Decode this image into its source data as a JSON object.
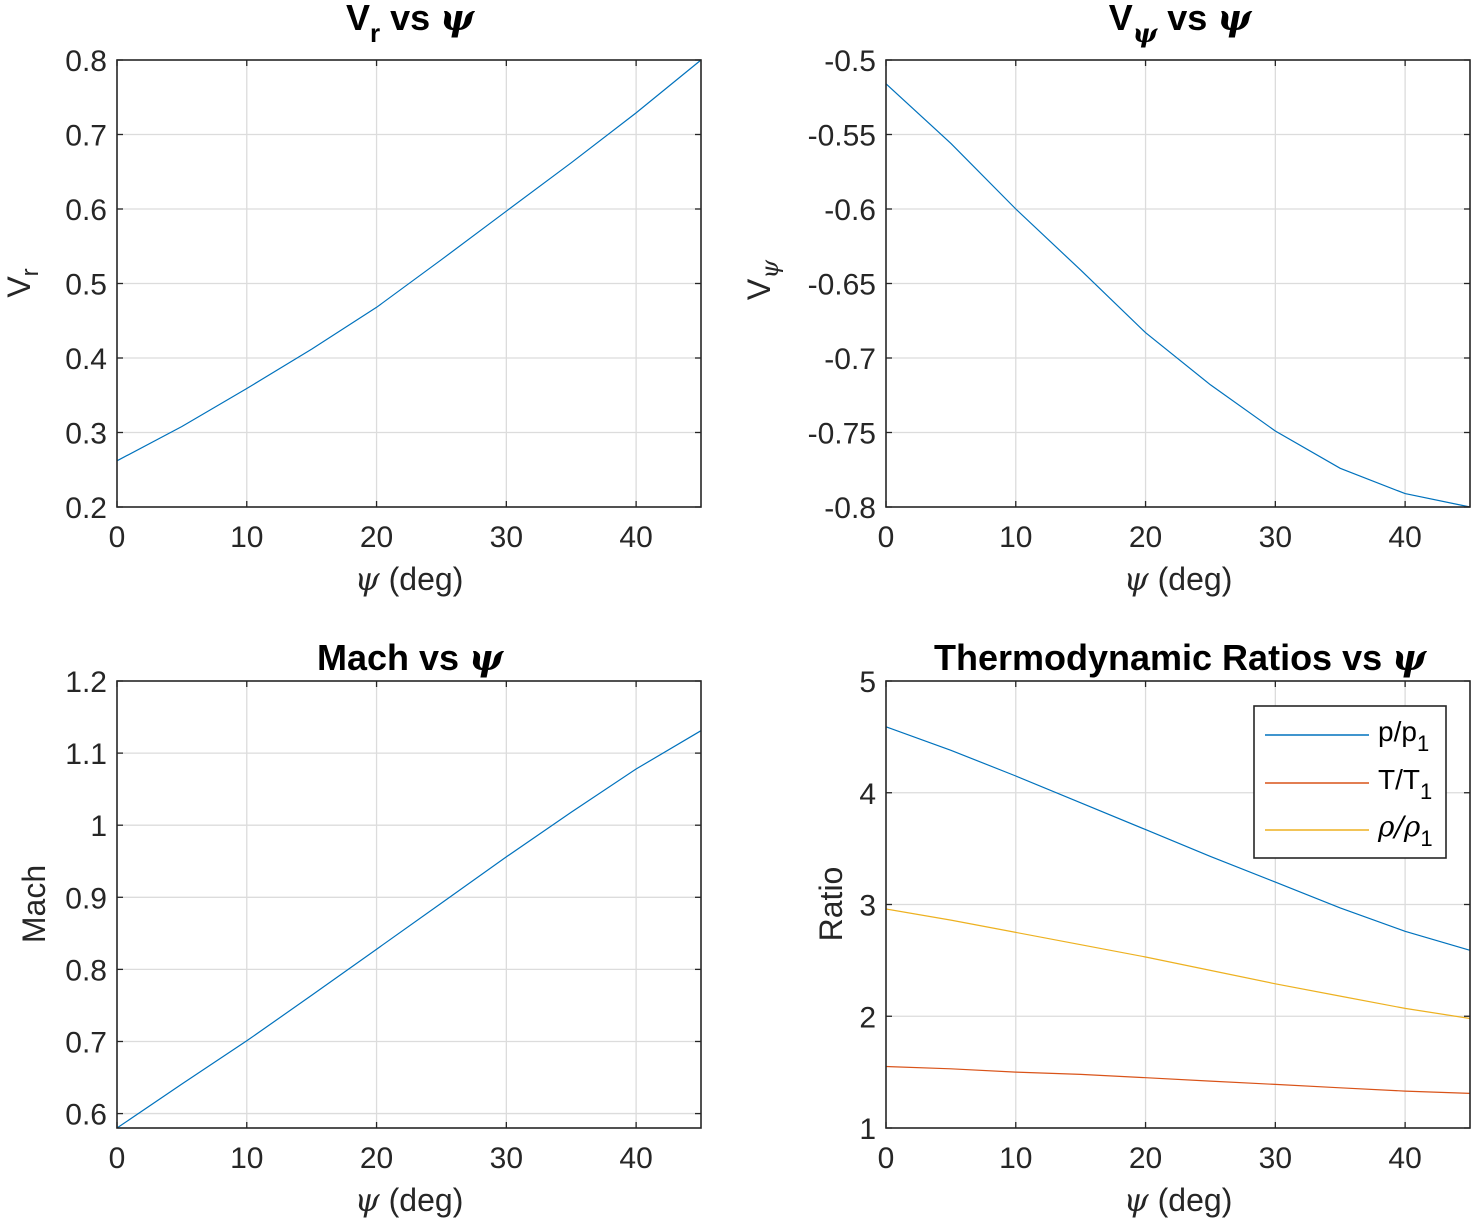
{
  "chart_data": [
    {
      "type": "line",
      "title_parts": [
        "V",
        "r",
        " vs ",
        "ψ"
      ],
      "xlabel_parts": [
        "ψ",
        " (deg)"
      ],
      "ylabel_parts": [
        "V",
        "r"
      ],
      "xlim": [
        0,
        45
      ],
      "ylim": [
        0.2,
        0.8
      ],
      "xticks": [
        0,
        10,
        20,
        30,
        40
      ],
      "xtick_labels": [
        "0",
        "10",
        "20",
        "30",
        "40"
      ],
      "yticks": [
        0.2,
        0.3,
        0.4,
        0.5,
        0.6,
        0.7,
        0.8
      ],
      "ytick_labels": [
        "0.2",
        "0.3",
        "0.4",
        "0.5",
        "0.6",
        "0.7",
        "0.8"
      ],
      "grid": true,
      "series": [
        {
          "color": "#0072BD",
          "x": [
            0,
            5,
            10,
            15,
            20,
            25,
            30,
            35,
            40,
            45
          ],
          "y": [
            0.262,
            0.308,
            0.359,
            0.412,
            0.468,
            0.532,
            0.597,
            0.662,
            0.729,
            0.8
          ]
        }
      ]
    },
    {
      "type": "line",
      "title_parts": [
        "V",
        "ψ",
        " vs ",
        "ψ"
      ],
      "xlabel_parts": [
        "ψ",
        " (deg)"
      ],
      "ylabel_parts": [
        "V",
        "ψ"
      ],
      "xlim": [
        0,
        45
      ],
      "ylim": [
        -0.8,
        -0.5
      ],
      "xticks": [
        0,
        10,
        20,
        30,
        40
      ],
      "xtick_labels": [
        "0",
        "10",
        "20",
        "30",
        "40"
      ],
      "yticks": [
        -0.8,
        -0.75,
        -0.7,
        -0.65,
        -0.6,
        -0.55,
        -0.5
      ],
      "ytick_labels": [
        "-0.8",
        "-0.75",
        "-0.7",
        "-0.65",
        "-0.6",
        "-0.55",
        "-0.5"
      ],
      "grid": true,
      "series": [
        {
          "color": "#0072BD",
          "x": [
            0,
            5,
            10,
            15,
            20,
            25,
            30,
            35,
            40,
            45
          ],
          "y": [
            -0.516,
            -0.556,
            -0.6,
            -0.641,
            -0.683,
            -0.718,
            -0.749,
            -0.774,
            -0.791,
            -0.8
          ]
        }
      ]
    },
    {
      "type": "line",
      "title_parts": [
        "Mach vs ",
        "ψ"
      ],
      "xlabel_parts": [
        "ψ",
        " (deg)"
      ],
      "ylabel": "Mach",
      "xlim": [
        0,
        45
      ],
      "ylim": [
        0.58,
        1.2
      ],
      "xticks": [
        0,
        10,
        20,
        30,
        40
      ],
      "xtick_labels": [
        "0",
        "10",
        "20",
        "30",
        "40"
      ],
      "yticks": [
        0.6,
        0.7,
        0.8,
        0.9,
        1.0,
        1.1,
        1.2
      ],
      "ytick_labels": [
        "0.6",
        "0.7",
        "0.8",
        "0.9",
        "1",
        "1.1",
        "1.2"
      ],
      "grid": true,
      "series": [
        {
          "color": "#0072BD",
          "x": [
            0,
            5,
            10,
            15,
            20,
            25,
            30,
            35,
            40,
            45
          ],
          "y": [
            0.58,
            0.641,
            0.701,
            0.764,
            0.828,
            0.892,
            0.956,
            1.018,
            1.078,
            1.131
          ]
        }
      ]
    },
    {
      "type": "line",
      "title_parts": [
        "Thermodynamic Ratios vs ",
        "ψ"
      ],
      "xlabel_parts": [
        "ψ",
        " (deg)"
      ],
      "ylabel": "Ratio",
      "xlim": [
        0,
        45
      ],
      "ylim": [
        1,
        5
      ],
      "xticks": [
        0,
        10,
        20,
        30,
        40
      ],
      "xtick_labels": [
        "0",
        "10",
        "20",
        "30",
        "40"
      ],
      "yticks": [
        1,
        2,
        3,
        4,
        5
      ],
      "ytick_labels": [
        "1",
        "2",
        "3",
        "4",
        "5"
      ],
      "grid": true,
      "legend_position": "top-right",
      "series": [
        {
          "label_parts": [
            "p/p",
            "1"
          ],
          "color": "#0072BD",
          "x": [
            0,
            5,
            10,
            15,
            20,
            25,
            30,
            35,
            40,
            45
          ],
          "y": [
            4.59,
            4.38,
            4.15,
            3.91,
            3.67,
            3.43,
            3.2,
            2.97,
            2.76,
            2.59
          ]
        },
        {
          "label_parts": [
            "T/T",
            "1"
          ],
          "color": "#D95319",
          "x": [
            0,
            5,
            10,
            15,
            20,
            25,
            30,
            35,
            40,
            45
          ],
          "y": [
            1.55,
            1.53,
            1.5,
            1.48,
            1.45,
            1.42,
            1.39,
            1.36,
            1.33,
            1.31
          ]
        },
        {
          "label_parts": [
            "ρ/ρ",
            "1"
          ],
          "color": "#EDB120",
          "x": [
            0,
            5,
            10,
            15,
            20,
            25,
            30,
            35,
            40,
            45
          ],
          "y": [
            2.96,
            2.86,
            2.75,
            2.64,
            2.53,
            2.41,
            2.29,
            2.18,
            2.07,
            1.98
          ]
        }
      ]
    }
  ]
}
